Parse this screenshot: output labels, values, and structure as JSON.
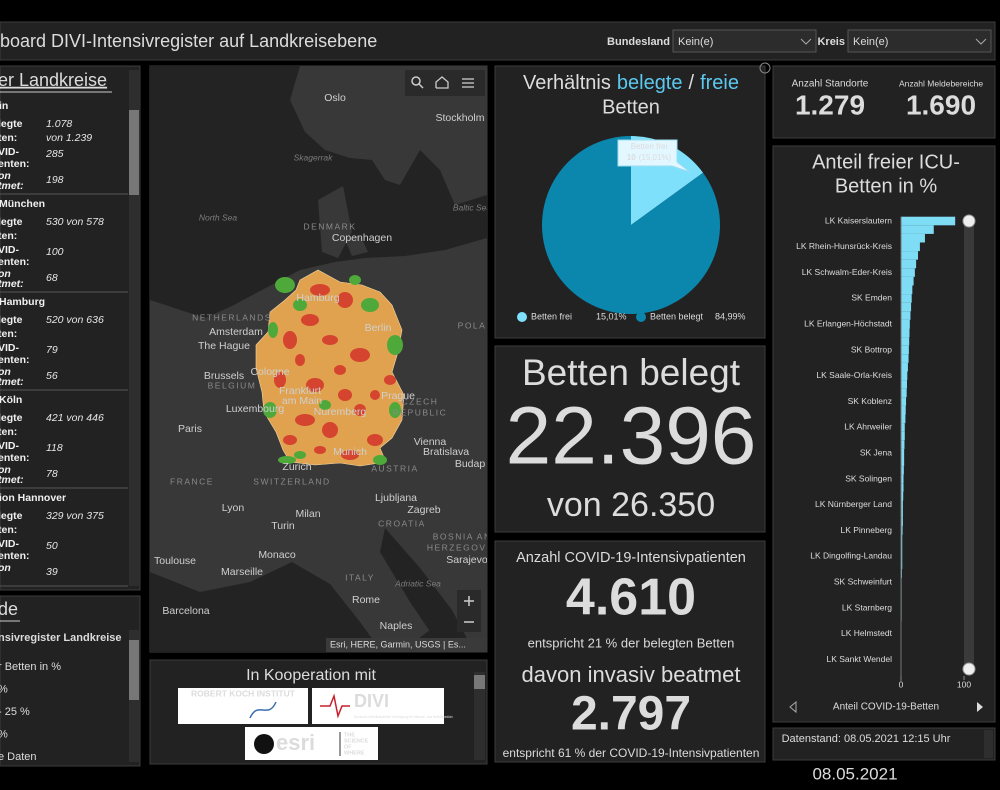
{
  "header": {
    "title": "board DIVI-Intensivregister auf Landkreisebene",
    "filters": [
      {
        "label": "Bundesland",
        "value": "Kein(e)"
      },
      {
        "label": "Kreis",
        "value": "Kein(e)"
      }
    ]
  },
  "district_list": {
    "title": "er Landkreise",
    "items": [
      {
        "name": "in",
        "labels": [
          "legte",
          "ten:",
          "VID-",
          "enten:",
          "on",
          "tmet:"
        ],
        "beds": [
          "1.078",
          "von 1.239"
        ],
        "covid": "285",
        "ventilated": "198"
      },
      {
        "name": "München",
        "labels": [
          "legte",
          "ten:",
          "VID-",
          "enten:",
          "on",
          "tmet:"
        ],
        "beds": [
          "530 von 578"
        ],
        "covid": "100",
        "ventilated": "68"
      },
      {
        "name": "Hamburg",
        "labels": [
          "legte",
          "ten:",
          "VID-",
          "enten:",
          "on",
          "tmet:"
        ],
        "beds": [
          "520 von 636"
        ],
        "covid": "79",
        "ventilated": "56"
      },
      {
        "name": "Köln",
        "labels": [
          "legte",
          "ten:",
          "VID-",
          "enten:",
          "on",
          "tmet:"
        ],
        "beds": [
          "421 von 446"
        ],
        "covid": "118",
        "ventilated": "78"
      },
      {
        "name": "ion Hannover",
        "labels": [
          "legte",
          "ten:",
          "VID-",
          "enten:",
          "on"
        ],
        "beds": [
          "329 von 375"
        ],
        "covid": "50",
        "ventilated": "39"
      }
    ]
  },
  "legend_panel": {
    "title": "de",
    "subtitle": "nsivregister Landkreise",
    "lines": [
      "r Betten in %",
      "%",
      "- 25 %",
      "%",
      "e Daten"
    ]
  },
  "map": {
    "labels": [
      "Oslo",
      "Stockholm",
      "Skagerrak",
      "North Sea",
      "Baltic Sea",
      "DENMARK",
      "Copenhagen",
      "NETHERLANDS",
      "Amsterdam",
      "The Hague",
      "Hamburg",
      "Berlin",
      "POLA",
      "Brussels",
      "BELGIUM",
      "Cologne",
      "Frankfurt",
      "am Main",
      "Prague",
      "CZECH",
      "REPUBLIC",
      "Luxembourg",
      "Paris",
      "Nuremberg",
      "Munich",
      "Vienna",
      "Bratislava",
      "Budap",
      "AUSTRIA",
      "Zurich",
      "SWITZERLAND",
      "FRANCE",
      "Lyon",
      "Milan",
      "Ljubljana",
      "Zagreb",
      "CROATIA",
      "Turin",
      "BOSNIA AND",
      "HERZEGOVINA",
      "Sarajevo",
      "Toulouse",
      "Monaco",
      "Marseille",
      "ITALY",
      "Adriatic Sea",
      "Rome",
      "Barcelona",
      "Naples"
    ],
    "attribution": "Esri, HERE, Garmin, USGS | Es..."
  },
  "cooperation": {
    "title": "In Kooperation mit",
    "rki": "ROBERT KOCH INSTITUT",
    "divi": "DIVI",
    "divi_subtitle": "Deutsche Interdisziplinäre Vereinigung für Intensiv- und Notfallmedizin",
    "esri": "esri",
    "esri_tagline": [
      "THE",
      "SCIENCE",
      "OF",
      "WHERE"
    ]
  },
  "beds_panel": {
    "title": "Betten belegt",
    "value": "22.396",
    "total": "von 26.350"
  },
  "covid_panel": {
    "title": "Anzahl COVID-19-Intensivpatienten",
    "value": "4.610",
    "note": "entspricht 21 % der belegten Betten",
    "ventilated_title": "davon invasiv beatmet",
    "ventilated": "2.797",
    "ventilated_note": "entspricht 61 % der COVID-19-Intensivpatienten"
  },
  "sites_panel": {
    "sites_label": "Anzahl Standorte",
    "sites": "1.279",
    "areas_label": "Anzahl Meldebereiche",
    "areas": "1.690"
  },
  "data_date": "Datenstand: 08.05.2021 12:15 Uhr",
  "stamp": "08.05.2021",
  "chart_data": [
    {
      "type": "pie",
      "title_parts": [
        "Verhältnis",
        "belegte",
        "/",
        "freie",
        "Betten"
      ],
      "categories": [
        "Betten frei",
        "Betten belegt"
      ],
      "values": [
        15.01,
        84.99
      ],
      "value_labels": [
        "15,01%",
        "84,99%"
      ],
      "colors": [
        "#7fe0fb",
        "#0b87ad"
      ],
      "tooltip": {
        "title": "Betten frei",
        "value": "10",
        "detail": "(15,01%)"
      }
    },
    {
      "type": "bar",
      "orientation": "horizontal",
      "title_lines": [
        "Anteil freier ICU-",
        "Betten in %"
      ],
      "categories": [
        "LK Kaiserslautern",
        null,
        null,
        "LK Rhein-Hunsrück-Kreis",
        null,
        null,
        "LK Schwalm-Eder-Kreis",
        null,
        null,
        "SK Emden",
        null,
        null,
        "LK Erlangen-Höchstadt",
        null,
        null,
        "SK Bottrop",
        null,
        null,
        "LK Saale-Orla-Kreis",
        null,
        null,
        "SK Koblenz",
        null,
        null,
        "LK Ahrweiler",
        null,
        null,
        "SK Jena",
        null,
        null,
        "SK Solingen",
        null,
        null,
        "LK Nürnberger Land",
        null,
        null,
        "LK Pinneberg",
        null,
        null,
        "LK Dingolfing-Landau",
        null,
        null,
        "SK Schweinfurt",
        null,
        null,
        "LK Starnberg",
        null,
        null,
        "LK Helmstedt",
        null,
        null,
        "LK Sankt Wendel",
        null,
        null
      ],
      "values": [
        86,
        52,
        38,
        30,
        27,
        24,
        22,
        20,
        18,
        17,
        16,
        15,
        14,
        13.5,
        13,
        12.5,
        12,
        11,
        10,
        9.5,
        9,
        8,
        7.5,
        7,
        6,
        6,
        5.5,
        5,
        5,
        4.5,
        4,
        4,
        3.5,
        3,
        3,
        3,
        2.5,
        2,
        2,
        2,
        2,
        1.5,
        1,
        1,
        1,
        1,
        1,
        0.5,
        0.5,
        0.5,
        0.5,
        0,
        0,
        0
      ],
      "color": "#7fdcf5",
      "xlim": [
        0,
        100
      ],
      "xticks": [
        0,
        100
      ],
      "xlabel": "Anteil COVID-19-Betten"
    }
  ]
}
